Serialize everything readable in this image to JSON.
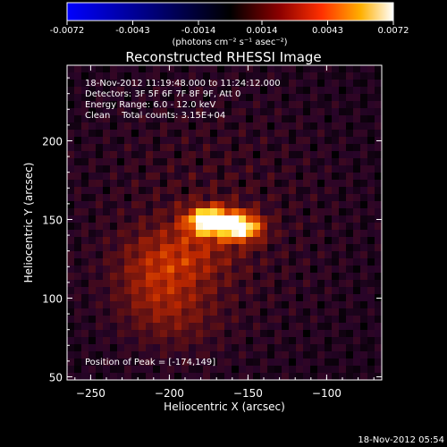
{
  "chart_data": {
    "type": "heatmap",
    "title": "Reconstructed RHESSI Image",
    "colorbar": {
      "ticks": [
        "-0.0072",
        "-0.0043",
        "-0.0014",
        "0.0014",
        "0.0043",
        "0.0072"
      ],
      "range": [
        -0.0072,
        0.0072
      ],
      "unit_label": "(photons cm⁻² s⁻¹ asec⁻²)"
    },
    "xlabel": "Heliocentric X (arcsec)",
    "ylabel": "Heliocentric Y (arcsec)",
    "xlim": [
      -265,
      -65
    ],
    "ylim": [
      48,
      248
    ],
    "xticks": [
      -250,
      -200,
      -150,
      -100
    ],
    "yticks": [
      50,
      100,
      150,
      200
    ],
    "annotations": [
      "18-Nov-2012 11:19:48.000 to 11:24:12.000",
      "Detectors: 3F 5F 6F 7F 8F 9F, Att 0",
      "Energy Range: 6.0 - 12.0 keV",
      "Clean    Total counts: 3.15E+04"
    ],
    "peak_label": "Position of Peak = [-174,149]",
    "peak": {
      "x": -174,
      "y": 149,
      "value": 0.0072
    },
    "sources": [
      {
        "x": -174,
        "y": 149,
        "sx": 10,
        "sy": 6,
        "amp": 1.0
      },
      {
        "x": -154,
        "y": 145,
        "sx": 9,
        "sy": 6,
        "amp": 0.85
      },
      {
        "x": -190,
        "y": 128,
        "sx": 22,
        "sy": 14,
        "amp": 0.25
      },
      {
        "x": -210,
        "y": 110,
        "sx": 18,
        "sy": 18,
        "amp": 0.2
      },
      {
        "x": -195,
        "y": 90,
        "sx": 20,
        "sy": 16,
        "amp": 0.15
      }
    ]
  },
  "footer_timestamp": "18-Nov-2012 05:54"
}
